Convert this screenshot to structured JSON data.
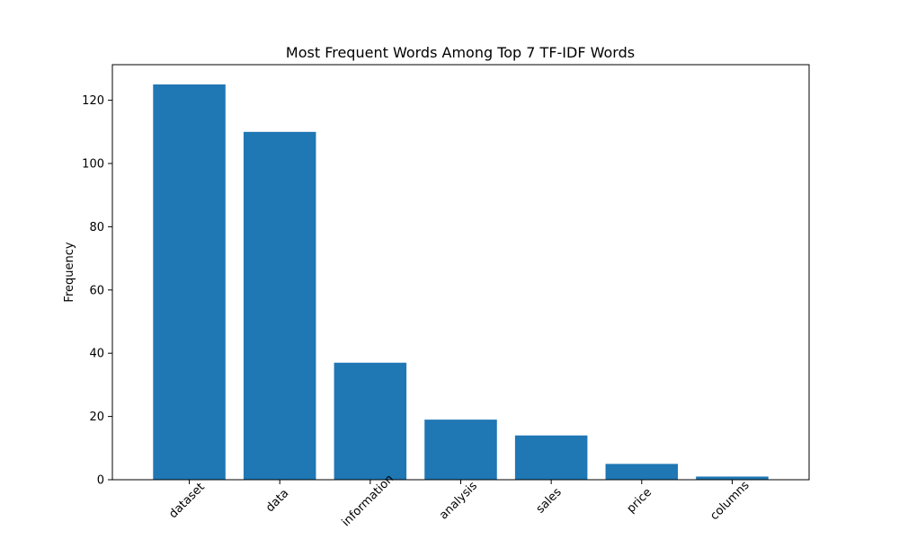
{
  "chart_data": {
    "type": "bar",
    "title": "Most Frequent Words Among Top 7 TF-IDF Words",
    "xlabel": "",
    "ylabel": "Frequency",
    "categories": [
      "dataset",
      "data",
      "information",
      "analysis",
      "sales",
      "price",
      "columns"
    ],
    "values": [
      125,
      110,
      37,
      19,
      14,
      5,
      1
    ],
    "ylim": [
      0,
      131.25
    ],
    "yticks": [
      0,
      20,
      40,
      60,
      80,
      100,
      120
    ],
    "grid": false,
    "bar_color": "#1f77b4",
    "xtick_rotation": 45
  }
}
